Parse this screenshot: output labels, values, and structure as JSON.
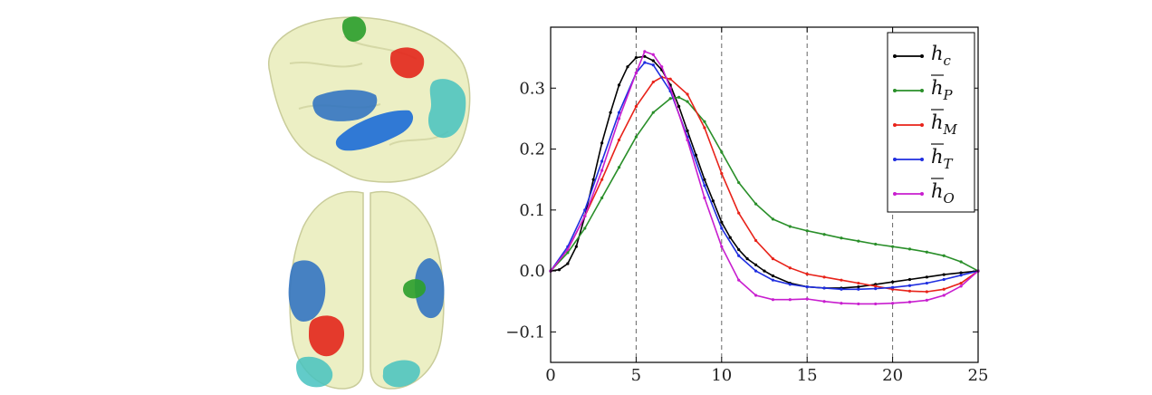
{
  "figure": {
    "panels": [
      "brain-sagittal-view",
      "brain-axial-view",
      "hrf-line-chart"
    ]
  },
  "brain": {
    "cortex_color": "#ecefc4",
    "regions": [
      {
        "id": "P",
        "color": "#2ea02e"
      },
      {
        "id": "M",
        "color": "#e3261c"
      },
      {
        "id": "T",
        "color": "#2f72c2"
      },
      {
        "id": "O",
        "color": "#46c2c0"
      }
    ]
  },
  "chart_data": {
    "type": "line",
    "title": "",
    "xlabel": "",
    "ylabel": "",
    "xlim": [
      0,
      25
    ],
    "ylim": [
      -0.15,
      0.4
    ],
    "xticks": [
      0,
      5,
      10,
      15,
      20,
      25
    ],
    "yticks": [
      -0.1,
      0.0,
      0.1,
      0.2,
      0.3
    ],
    "ytick_labels": [
      "−0.1",
      "0.0",
      "0.1",
      "0.2",
      "0.3"
    ],
    "xtick_labels": [
      "0",
      "5",
      "10",
      "15",
      "20",
      "25"
    ],
    "vlines": [
      5,
      10,
      15,
      20
    ],
    "legend_position": "top-right",
    "grid": false,
    "series": [
      {
        "name": "h_c",
        "legend_base": "h",
        "legend_sub": "c",
        "bar": false,
        "color": "#000000",
        "x": [
          0,
          0.5,
          1,
          1.5,
          2,
          2.5,
          3,
          3.5,
          4,
          4.5,
          5,
          5.5,
          6,
          6.5,
          7,
          7.5,
          8,
          8.5,
          9,
          9.5,
          10,
          10.5,
          11,
          11.5,
          12,
          12.5,
          13,
          14,
          15,
          16,
          17,
          18,
          19,
          20,
          21,
          22,
          23,
          24,
          25
        ],
        "y": [
          0,
          0.002,
          0.012,
          0.04,
          0.09,
          0.15,
          0.21,
          0.26,
          0.305,
          0.335,
          0.35,
          0.352,
          0.345,
          0.33,
          0.305,
          0.27,
          0.23,
          0.19,
          0.15,
          0.115,
          0.08,
          0.055,
          0.035,
          0.02,
          0.01,
          0,
          -0.008,
          -0.02,
          -0.026,
          -0.028,
          -0.028,
          -0.026,
          -0.022,
          -0.018,
          -0.014,
          -0.01,
          -0.006,
          -0.003,
          0
        ]
      },
      {
        "name": "h_P",
        "legend_base": "h",
        "legend_sub": "P",
        "bar": true,
        "color": "#2a8f2a",
        "x": [
          0,
          1,
          2,
          3,
          4,
          5,
          6,
          7,
          7.5,
          8,
          9,
          10,
          11,
          12,
          13,
          14,
          15,
          16,
          17,
          18,
          19,
          20,
          21,
          22,
          23,
          24,
          25
        ],
        "y": [
          0,
          0.03,
          0.07,
          0.12,
          0.17,
          0.22,
          0.26,
          0.283,
          0.285,
          0.278,
          0.245,
          0.195,
          0.145,
          0.11,
          0.085,
          0.073,
          0.066,
          0.06,
          0.054,
          0.049,
          0.044,
          0.04,
          0.036,
          0.031,
          0.025,
          0.015,
          0
        ]
      },
      {
        "name": "h_M",
        "legend_base": "h",
        "legend_sub": "M",
        "bar": true,
        "color": "#e8231a",
        "x": [
          0,
          1,
          2,
          3,
          4,
          5,
          6,
          6.5,
          7,
          8,
          9,
          10,
          11,
          12,
          13,
          14,
          15,
          16,
          17,
          18,
          19,
          20,
          21,
          22,
          23,
          24,
          25
        ],
        "y": [
          0,
          0.035,
          0.09,
          0.15,
          0.215,
          0.27,
          0.31,
          0.318,
          0.315,
          0.29,
          0.235,
          0.16,
          0.095,
          0.05,
          0.02,
          0.005,
          -0.005,
          -0.01,
          -0.015,
          -0.02,
          -0.025,
          -0.03,
          -0.033,
          -0.034,
          -0.03,
          -0.02,
          0
        ]
      },
      {
        "name": "h_T",
        "legend_base": "h",
        "legend_sub": "T",
        "bar": true,
        "color": "#1f2ee0",
        "x": [
          0,
          1,
          2,
          3,
          4,
          5,
          5.5,
          6,
          7,
          8,
          9,
          10,
          11,
          12,
          13,
          14,
          15,
          16,
          17,
          18,
          19,
          20,
          21,
          22,
          23,
          24,
          25
        ],
        "y": [
          0,
          0.04,
          0.1,
          0.18,
          0.26,
          0.325,
          0.342,
          0.338,
          0.295,
          0.22,
          0.14,
          0.07,
          0.025,
          0,
          -0.015,
          -0.022,
          -0.026,
          -0.028,
          -0.03,
          -0.03,
          -0.029,
          -0.027,
          -0.024,
          -0.02,
          -0.014,
          -0.007,
          0
        ]
      },
      {
        "name": "h_O",
        "legend_base": "h",
        "legend_sub": "O",
        "bar": true,
        "color": "#c81ecf",
        "x": [
          0,
          1,
          2,
          3,
          4,
          5,
          5.5,
          6,
          6.5,
          7,
          8,
          9,
          10,
          11,
          12,
          13,
          14,
          15,
          16,
          17,
          18,
          19,
          20,
          21,
          22,
          23,
          24,
          25
        ],
        "y": [
          0,
          0.035,
          0.09,
          0.165,
          0.25,
          0.325,
          0.36,
          0.355,
          0.335,
          0.3,
          0.215,
          0.12,
          0.04,
          -0.015,
          -0.04,
          -0.047,
          -0.047,
          -0.046,
          -0.05,
          -0.053,
          -0.054,
          -0.054,
          -0.053,
          -0.051,
          -0.048,
          -0.04,
          -0.025,
          0
        ]
      }
    ]
  }
}
